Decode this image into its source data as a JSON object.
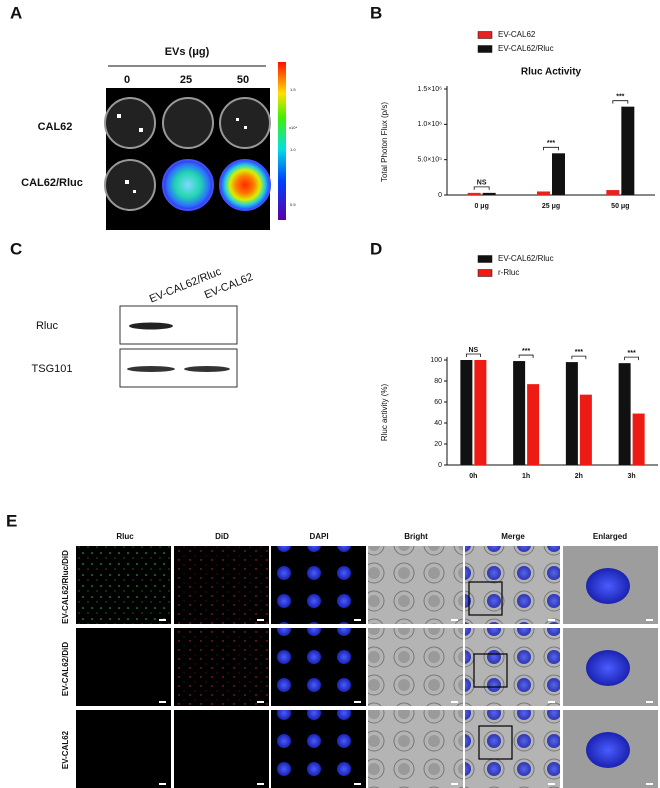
{
  "panel_labels": [
    "A",
    "B",
    "C",
    "D",
    "E"
  ],
  "panel_a": {
    "title": "EVs (μg)",
    "columns": [
      "0",
      "25",
      "50"
    ],
    "rows": [
      "CAL62",
      "CAL62/Rluc"
    ],
    "colorbar_ticks": [
      "1.5",
      "1.0",
      "0.5"
    ],
    "colorbar_unit": "x10⁴"
  },
  "chart_data": [
    {
      "type": "bar",
      "title": "Rluc Activity",
      "y_label": "Total Photon Flux (p/s)",
      "categories": [
        "0 μg",
        "25 μg",
        "50 μg"
      ],
      "series": [
        {
          "name": "EV-CAL62",
          "color": "#e8221e",
          "values": [
            30000,
            50000,
            70000
          ]
        },
        {
          "name": "EV-CAL62/Rluc",
          "color": "#111111",
          "values": [
            30000,
            590000,
            1250000
          ]
        }
      ],
      "annotations": [
        "NS",
        "***",
        "***"
      ],
      "ylim": [
        0,
        1500000
      ],
      "yticks": [
        0,
        {
          "value": 500000,
          "label": "5.0×10⁵"
        },
        {
          "value": 1000000,
          "label": "1.0×10⁶"
        },
        {
          "value": 1500000,
          "label": "1.5×10⁶"
        }
      ]
    },
    {
      "type": "bar",
      "y_label": "Rluc activity (%)",
      "categories": [
        "0h",
        "1h",
        "2h",
        "3h"
      ],
      "series": [
        {
          "name": "EV-CAL62/Rluc",
          "color": "#111111",
          "values": [
            100,
            99,
            98,
            97
          ]
        },
        {
          "name": "r-Rluc",
          "color": "#ee1a14",
          "values": [
            100,
            77,
            67,
            49
          ]
        }
      ],
      "annotations": [
        "NS",
        "***",
        "***",
        "***"
      ],
      "ylim": [
        0,
        100
      ],
      "yticks": [
        0,
        20,
        40,
        60,
        80,
        100
      ]
    }
  ],
  "panel_c": {
    "lanes": [
      "EV-CAL62/Rluc",
      "EV-CAL62"
    ],
    "rows": [
      "Rluc",
      "TSG101"
    ]
  },
  "panel_e": {
    "columns": [
      "Rluc",
      "DiD",
      "DAPI",
      "Bright",
      "Merge",
      "Enlarged"
    ],
    "rows": [
      "EV-CAL62/Rluc/DiD",
      "EV-CAL62/DiD",
      "EV-CAL62"
    ]
  }
}
